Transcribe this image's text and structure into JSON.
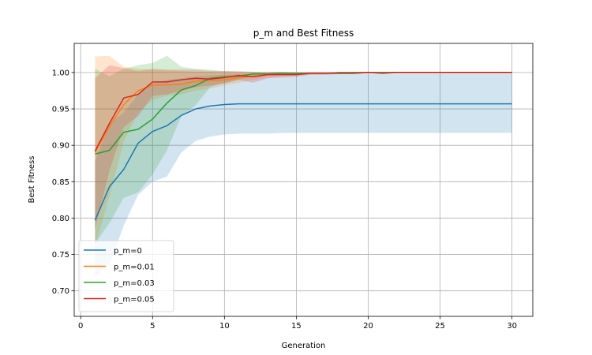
{
  "chart_data": {
    "type": "line",
    "title": "p_m and Best Fitness",
    "xlabel": "Generation",
    "ylabel": "Best Fitness",
    "xlim": [
      -0.45,
      31.45
    ],
    "ylim": [
      0.665,
      1.04
    ],
    "xticks": [
      0,
      5,
      10,
      15,
      20,
      25,
      30
    ],
    "yticks": [
      0.7,
      0.75,
      0.8,
      0.85,
      0.9,
      0.95,
      1.0
    ],
    "grid": true,
    "legend_position": "lower-left",
    "x": [
      1,
      2,
      3,
      4,
      5,
      6,
      7,
      8,
      9,
      10,
      11,
      12,
      13,
      14,
      15,
      16,
      17,
      18,
      19,
      20,
      21,
      22,
      23,
      24,
      25,
      26,
      27,
      28,
      29,
      30
    ],
    "series": [
      {
        "name": "p_m=0",
        "color": "#1f77b4",
        "values": [
          0.797,
          0.843,
          0.867,
          0.903,
          0.919,
          0.927,
          0.941,
          0.95,
          0.954,
          0.956,
          0.957,
          0.957,
          0.957,
          0.957,
          0.957,
          0.957,
          0.957,
          0.957,
          0.957,
          0.957,
          0.957,
          0.957,
          0.957,
          0.957,
          0.957,
          0.957,
          0.957,
          0.957,
          0.957,
          0.957
        ],
        "lower": [
          0.72,
          0.735,
          0.79,
          0.832,
          0.85,
          0.857,
          0.89,
          0.906,
          0.912,
          0.915,
          0.916,
          0.916,
          0.916,
          0.917,
          0.917,
          0.917,
          0.917,
          0.917,
          0.917,
          0.917,
          0.917,
          0.917,
          0.917,
          0.917,
          0.917,
          0.917,
          0.917,
          0.917,
          0.917,
          0.917
        ],
        "upper": [
          0.878,
          0.93,
          0.945,
          0.97,
          0.985,
          0.99,
          0.992,
          0.995,
          0.996,
          0.997,
          0.998,
          0.998,
          0.998,
          0.998,
          0.998,
          0.998,
          0.998,
          0.998,
          0.998,
          0.998,
          0.998,
          0.998,
          0.998,
          0.998,
          0.998,
          0.998,
          0.998,
          0.998,
          0.998,
          0.998
        ]
      },
      {
        "name": "p_m=0.01",
        "color": "#ff7f0e",
        "values": [
          0.89,
          0.926,
          0.956,
          0.975,
          0.983,
          0.983,
          0.984,
          0.988,
          0.989,
          0.99,
          0.993,
          0.995,
          0.997,
          0.998,
          0.998,
          0.999,
          0.999,
          0.999,
          0.999,
          1.0,
          1.0,
          1.0,
          1.0,
          1.0,
          1.0,
          1.0,
          1.0,
          1.0,
          1.0,
          1.0
        ],
        "lower": [
          0.76,
          0.83,
          0.905,
          0.945,
          0.962,
          0.968,
          0.97,
          0.975,
          0.978,
          0.982,
          0.986,
          0.99,
          0.993,
          0.995,
          0.996,
          0.997,
          0.997,
          0.998,
          0.998,
          0.999,
          0.999,
          0.999,
          0.999,
          0.999,
          0.999,
          0.999,
          0.999,
          0.999,
          0.999,
          0.999
        ],
        "upper": [
          1.022,
          1.023,
          1.008,
          1.005,
          1.004,
          1.003,
          1.002,
          1.001,
          1.001,
          1.0,
          1.0,
          1.0,
          1.0,
          1.0,
          1.0,
          1.0,
          1.0,
          1.0,
          1.0,
          1.0,
          1.0,
          1.0,
          1.0,
          1.0,
          1.0,
          1.0,
          1.0,
          1.0,
          1.0,
          1.0
        ]
      },
      {
        "name": "p_m=0.03",
        "color": "#2ca02c",
        "values": [
          0.888,
          0.893,
          0.918,
          0.922,
          0.936,
          0.958,
          0.976,
          0.982,
          0.992,
          0.994,
          0.995,
          0.998,
          0.998,
          0.999,
          0.999,
          0.999,
          0.999,
          1.0,
          1.0,
          1.0,
          1.0,
          1.0,
          1.0,
          1.0,
          1.0,
          1.0,
          1.0,
          1.0,
          1.0,
          1.0
        ],
        "lower": [
          0.765,
          0.793,
          0.828,
          0.835,
          0.86,
          0.893,
          0.94,
          0.955,
          0.98,
          0.986,
          0.99,
          0.995,
          0.996,
          0.997,
          0.998,
          0.998,
          0.998,
          0.999,
          0.999,
          0.999,
          0.999,
          0.999,
          0.999,
          0.999,
          0.999,
          0.999,
          0.999,
          0.999,
          0.999,
          0.999
        ],
        "upper": [
          1.005,
          0.995,
          1.005,
          1.01,
          1.013,
          1.023,
          1.008,
          1.005,
          1.004,
          1.002,
          1.001,
          1.001,
          1.0,
          1.0,
          1.0,
          1.0,
          1.0,
          1.0,
          1.0,
          1.0,
          1.0,
          1.0,
          1.0,
          1.0,
          1.0,
          1.0,
          1.0,
          1.0,
          1.0,
          1.0
        ]
      },
      {
        "name": "p_m=0.05",
        "color": "#d62728",
        "values": [
          0.892,
          0.93,
          0.965,
          0.97,
          0.987,
          0.987,
          0.99,
          0.992,
          0.991,
          0.993,
          0.996,
          0.994,
          0.997,
          0.997,
          0.997,
          0.999,
          0.999,
          0.999,
          0.999,
          1.0,
          0.999,
          1.0,
          1.0,
          1.0,
          1.0,
          1.0,
          1.0,
          1.0,
          1.0,
          1.0
        ],
        "lower": [
          0.785,
          0.865,
          0.925,
          0.94,
          0.968,
          0.97,
          0.975,
          0.98,
          0.982,
          0.985,
          0.99,
          0.986,
          0.992,
          0.993,
          0.994,
          0.997,
          0.997,
          0.998,
          0.998,
          0.999,
          0.998,
          0.999,
          0.999,
          0.999,
          0.999,
          0.999,
          0.999,
          0.999,
          0.999,
          0.999
        ],
        "upper": [
          0.992,
          1.01,
          1.006,
          1.002,
          1.005,
          1.004,
          1.004,
          1.004,
          1.002,
          1.002,
          1.002,
          1.001,
          1.001,
          1.001,
          1.0,
          1.0,
          1.0,
          1.0,
          1.0,
          1.0,
          1.0,
          1.0,
          1.0,
          1.0,
          1.0,
          1.0,
          1.0,
          1.0,
          1.0,
          1.0
        ]
      }
    ]
  }
}
